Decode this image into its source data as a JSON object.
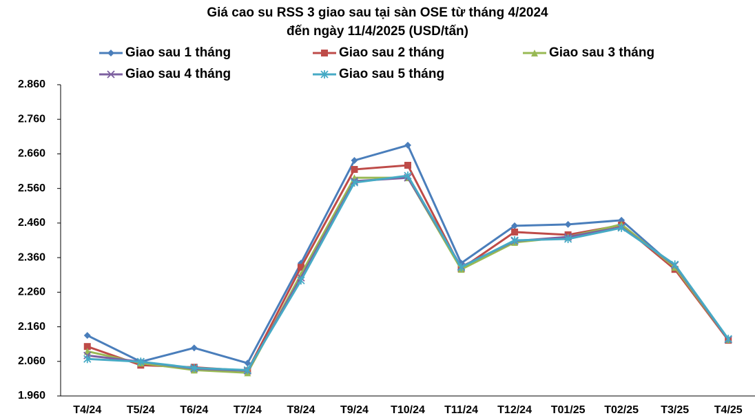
{
  "chart_data": {
    "type": "line",
    "title": [
      "Giá cao su RSS 3 giao sau tại sàn OSE từ tháng 4/2024",
      "đến ngày 11/4/2025 (USD/tấn)"
    ],
    "categories": [
      "T4/24",
      "T5/24",
      "T6/24",
      "T7/24",
      "T8/24",
      "T9/24",
      "T10/24",
      "T11/24",
      "T12/24",
      "T01/25",
      "T02/25",
      "T3/25",
      "T4/25"
    ],
    "series": [
      {
        "name": "Giao sau 1 tháng",
        "color": "#4a7ebb",
        "values": [
          2135,
          2059,
          2099,
          2055,
          2344,
          2641,
          2685,
          2344,
          2452,
          2456,
          2468,
          2332,
          2123
        ]
      },
      {
        "name": "Giao sau 2 tháng",
        "color": "#be4b48",
        "values": [
          2103,
          2049,
          2043,
          2033,
          2332,
          2615,
          2627,
          2328,
          2434,
          2426,
          2454,
          2326,
          2121
        ]
      },
      {
        "name": "Giao sau 3 tháng",
        "color": "#98b954",
        "values": [
          2089,
          2055,
          2035,
          2027,
          2312,
          2591,
          2591,
          2326,
          2404,
          2420,
          2456,
          2332,
          2123
        ]
      },
      {
        "name": "Giao sau 4 tháng",
        "color": "#7d60a0",
        "values": [
          2077,
          2059,
          2039,
          2033,
          2302,
          2581,
          2591,
          2334,
          2408,
          2420,
          2448,
          2338,
          2123
        ]
      },
      {
        "name": "Giao sau 5 tháng",
        "color": "#46aac5",
        "values": [
          2067,
          2059,
          2041,
          2035,
          2294,
          2577,
          2597,
          2332,
          2410,
          2414,
          2446,
          2340,
          2125
        ]
      }
    ],
    "ylim": [
      1960,
      2860
    ],
    "yticks": [
      {
        "value": 1960,
        "label": "1.960"
      },
      {
        "value": 2060,
        "label": "2.060"
      },
      {
        "value": 2160,
        "label": "2.160"
      },
      {
        "value": 2260,
        "label": "2.260"
      },
      {
        "value": 2360,
        "label": "2.360"
      },
      {
        "value": 2460,
        "label": "2.460"
      },
      {
        "value": 2560,
        "label": "2.560"
      },
      {
        "value": 2660,
        "label": "2.660"
      },
      {
        "value": 2760,
        "label": "2.760"
      },
      {
        "value": 2860,
        "label": "2.860"
      }
    ],
    "grid": false
  }
}
